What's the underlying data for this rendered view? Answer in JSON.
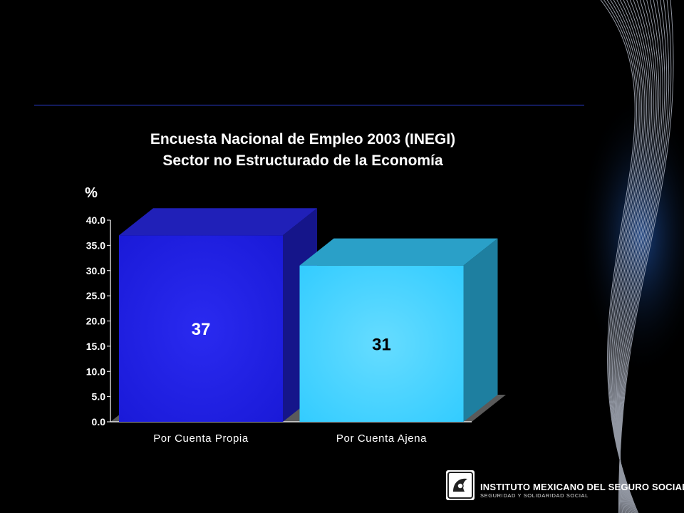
{
  "chart_data": {
    "type": "bar",
    "title": "Encuesta Nacional de Empleo 2003 (INEGI)",
    "subtitle": "Sector no Estructurado de la Economía",
    "ylabel": "%",
    "ylim": [
      0,
      40
    ],
    "yticks": [
      "0.0",
      "5.0",
      "10.0",
      "15.0",
      "20.0",
      "25.0",
      "30.0",
      "35.0",
      "40.0"
    ],
    "categories": [
      "Por Cuenta Propia",
      "Por Cuenta Ajena"
    ],
    "values": [
      37,
      31
    ],
    "data_labels": [
      "37",
      "31"
    ],
    "colors": [
      "#2a2af0",
      "#33ccff"
    ]
  },
  "logo": {
    "name": "INSTITUTO MEXICANO DEL SEGURO SOCIAL",
    "tagline": "SEGURIDAD Y SOLIDARIDAD SOCIAL"
  }
}
